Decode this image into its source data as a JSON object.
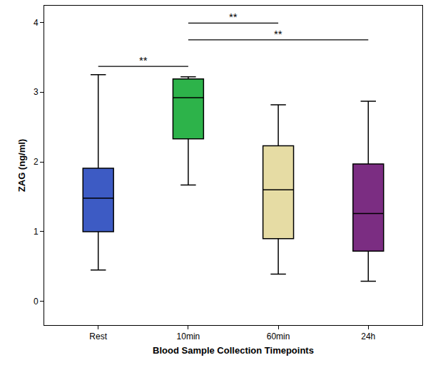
{
  "chart_data": {
    "type": "box",
    "xlabel": "Blood Sample Collection Timepoints",
    "ylabel": "ZAG (ng/ml)",
    "categories": [
      "Rest",
      "10min",
      "60min",
      "24h"
    ],
    "colors": [
      "#3d5bc4",
      "#2db34a",
      "#e6dca4",
      "#7b2d82"
    ],
    "lower_whisker": [
      0.45,
      1.67,
      0.39,
      0.29
    ],
    "q1": [
      1.0,
      2.33,
      0.9,
      0.72
    ],
    "median": [
      1.48,
      2.92,
      1.6,
      1.26
    ],
    "q3": [
      1.91,
      3.19,
      2.23,
      1.97
    ],
    "upper_whisker": [
      3.25,
      3.22,
      2.82,
      2.87
    ],
    "ylim": [
      -0.34,
      4.24
    ],
    "yticks": [
      0,
      1,
      2,
      3,
      4
    ],
    "grid": false,
    "annotations": [
      {
        "from": "Rest",
        "to": "10min",
        "y": 3.37,
        "text": "**"
      },
      {
        "from": "10min",
        "to": "60min",
        "y": 3.99,
        "text": "**"
      },
      {
        "from": "10min",
        "to": "24h",
        "y": 3.75,
        "text": "**"
      }
    ]
  }
}
